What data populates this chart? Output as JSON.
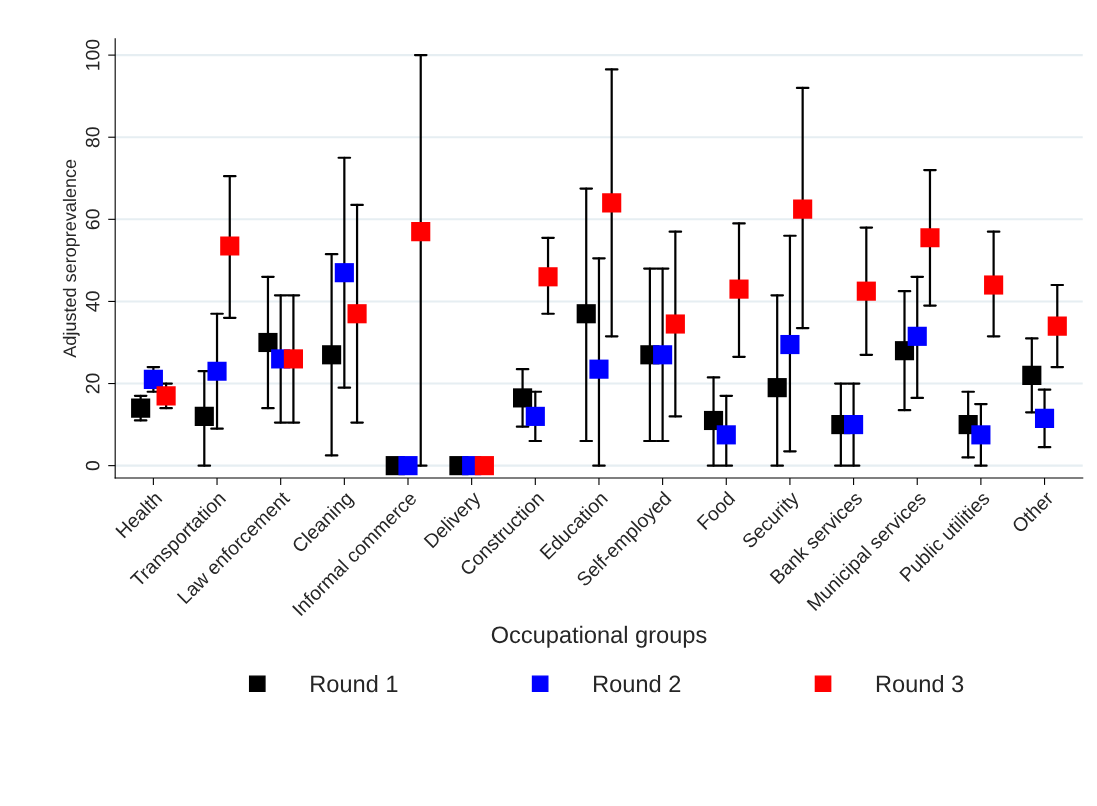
{
  "chart_data": {
    "type": "scatter",
    "xlabel": "Occupational groups",
    "ylabel": "Adjusted seroprevalence",
    "categories": [
      "Health",
      "Transportation",
      "Law enforcement",
      "Cleaning",
      "Informal commerce",
      "Delivery",
      "Construction",
      "Education",
      "Self-employed",
      "Food",
      "Security",
      "Bank services",
      "Municipal services",
      "Public utilities",
      "Other"
    ],
    "series": [
      {
        "name": "Round 1",
        "color": "#000000",
        "values": [
          14,
          12,
          30,
          27,
          0,
          0,
          16.5,
          37,
          27,
          11,
          19,
          10,
          28,
          10,
          22
        ],
        "errors": [
          [
            11,
            17
          ],
          [
            0,
            23
          ],
          [
            14,
            46
          ],
          [
            2.5,
            51.5
          ],
          null,
          null,
          [
            9.5,
            23.5
          ],
          [
            6,
            67.5
          ],
          [
            6,
            48
          ],
          [
            0,
            21.5
          ],
          [
            0,
            41.5
          ],
          [
            0,
            20
          ],
          [
            13.5,
            42.5
          ],
          [
            2,
            18
          ],
          [
            13,
            31
          ]
        ]
      },
      {
        "name": "Round 2",
        "color": "#0000ff",
        "values": [
          21,
          23,
          26,
          47,
          0,
          0,
          12,
          23.5,
          27,
          7.5,
          29.5,
          10,
          31.5,
          7.5,
          11.5
        ],
        "errors": [
          [
            18,
            24
          ],
          [
            9,
            37
          ],
          [
            10.5,
            41.5
          ],
          [
            19,
            75
          ],
          null,
          null,
          [
            6,
            18
          ],
          [
            0,
            50.5
          ],
          [
            6,
            48
          ],
          [
            0,
            17
          ],
          [
            3.5,
            56
          ],
          [
            0,
            20
          ],
          [
            16.5,
            46
          ],
          [
            0,
            15
          ],
          [
            4.5,
            18.5
          ]
        ]
      },
      {
        "name": "Round 3",
        "color": "#ff0000",
        "values": [
          17,
          53.5,
          26,
          37,
          57,
          0,
          46,
          64,
          34.5,
          43,
          62.5,
          42.5,
          55.5,
          44,
          34
        ],
        "errors": [
          [
            14,
            20
          ],
          [
            36,
            70.5
          ],
          [
            10.5,
            41.5
          ],
          [
            10.5,
            63.5
          ],
          [
            0,
            100
          ],
          null,
          [
            37,
            55.5
          ],
          [
            31.5,
            96.5
          ],
          [
            12,
            57
          ],
          [
            26.5,
            59
          ],
          [
            33.5,
            92
          ],
          [
            27,
            58
          ],
          [
            39,
            72
          ],
          [
            31.5,
            57
          ],
          [
            24,
            44
          ]
        ]
      }
    ],
    "ylim": [
      -3,
      104
    ],
    "yticks": [
      0,
      20,
      40,
      60,
      80,
      100
    ],
    "grid": "y",
    "marker": "square",
    "legend": "bottom"
  }
}
